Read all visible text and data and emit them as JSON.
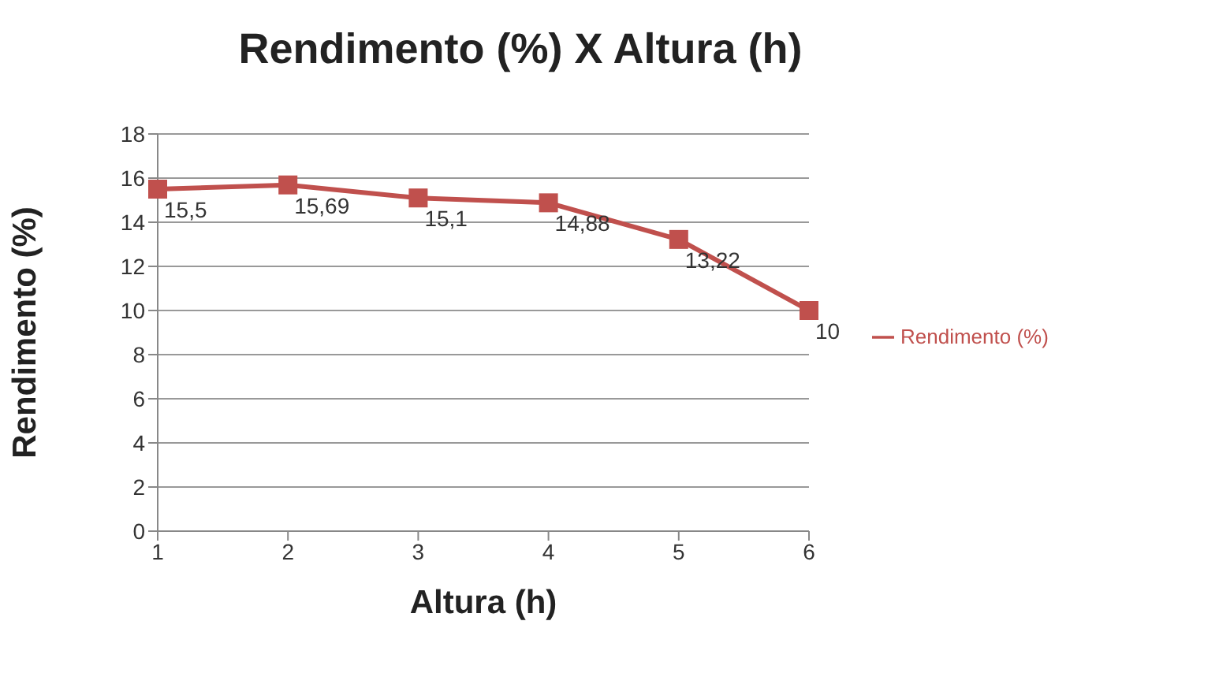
{
  "chart_data": {
    "type": "line",
    "title": "Rendimento (%) X Altura (h)",
    "xlabel": "Altura (h)",
    "ylabel": "Rendimento (%)",
    "categories": [
      "1",
      "2",
      "3",
      "4",
      "5",
      "6"
    ],
    "series": [
      {
        "name": "Rendimento (%)",
        "color": "#c0504d",
        "values": [
          15.5,
          15.69,
          15.1,
          14.88,
          13.22,
          10
        ],
        "value_labels": [
          "15,5",
          "15,69",
          "15,1",
          "14,88",
          "13,22",
          "10"
        ]
      }
    ],
    "ylim": [
      0,
      18
    ],
    "yticks": [
      0,
      2,
      4,
      6,
      8,
      10,
      12,
      14,
      16,
      18
    ],
    "grid": "y",
    "legend": "right",
    "marker": "square",
    "line_style": "solid"
  }
}
